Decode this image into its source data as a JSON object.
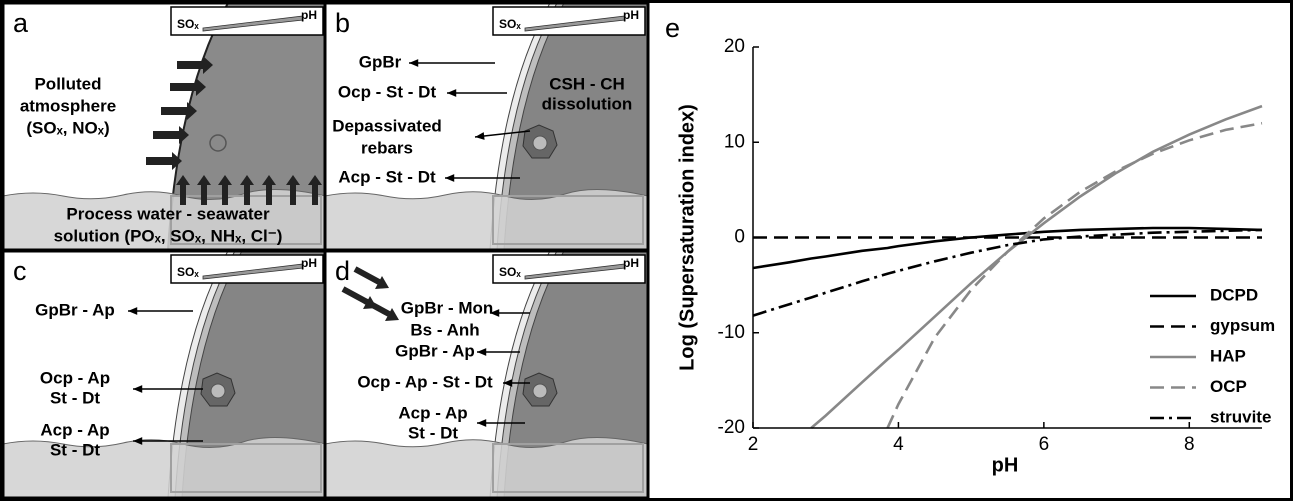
{
  "panels": [
    {
      "letter": "a",
      "gauge": {
        "left": "SOₓ",
        "right": "pH"
      },
      "labels": [
        "Polluted",
        "atmosphere",
        "(SOₓ, NOₓ)",
        "Process water - seawater",
        "solution (POₓ, SOₓ, NHₓ, Cl⁻)"
      ]
    },
    {
      "letter": "b",
      "gauge": {
        "left": "SOₓ",
        "right": "pH"
      },
      "labels": [
        "GpBr",
        "Ocp - St - Dt",
        "Depassivated",
        "rebars",
        "Acp - St - Dt",
        "CSH - CH",
        "dissolution"
      ]
    },
    {
      "letter": "c",
      "gauge": {
        "left": "SOₓ",
        "right": "pH"
      },
      "labels": [
        "GpBr - Ap",
        "Ocp - Ap",
        "St - Dt",
        "Acp - Ap",
        "St - Dt"
      ]
    },
    {
      "letter": "d",
      "gauge": {
        "left": "SOₓ",
        "right": "pH"
      },
      "labels": [
        "GpBr - Mon",
        "Bs - Anh",
        "GpBr - Ap",
        "Ocp - Ap - St - Dt",
        "Acp - Ap",
        "St - Dt"
      ]
    }
  ],
  "chart_data": {
    "type": "line",
    "panel_letter": "e",
    "x_label": "pH",
    "y_label": "Log (Supersaturation index)",
    "x": [
      2,
      2.5,
      2.8,
      3,
      3.5,
      3.85,
      4,
      4.5,
      5,
      5.5,
      6,
      6.5,
      7,
      7.5,
      8,
      8.5,
      9
    ],
    "xlim": [
      2,
      9
    ],
    "xticks": [
      2,
      4,
      6,
      8
    ],
    "ylim": [
      -20,
      20
    ],
    "yticks": [
      -20,
      -10,
      0,
      10,
      20
    ],
    "legend": "lower right",
    "series": [
      {
        "name": "DCPD",
        "color": "#000000",
        "dash": "solid",
        "values": [
          -3.2,
          -2.6,
          -2.2,
          -2.0,
          -1.4,
          -1.1,
          -0.9,
          -0.4,
          0,
          0.3,
          0.6,
          0.8,
          0.9,
          1.0,
          1.0,
          0.9,
          0.8
        ]
      },
      {
        "name": "gypsum",
        "color": "#000000",
        "dash": "dashed",
        "values": [
          0,
          0,
          0,
          0,
          0,
          0,
          0,
          0,
          0,
          0,
          0,
          0,
          0,
          0,
          0,
          0,
          0
        ]
      },
      {
        "name": "HAP",
        "color": "#888888",
        "dash": "solid",
        "values": [
          null,
          null,
          -20,
          -18.7,
          -15.2,
          -12.8,
          -11.8,
          -8.3,
          -4.8,
          -1.5,
          1.5,
          4.3,
          6.8,
          9.0,
          10.8,
          12.4,
          13.8
        ]
      },
      {
        "name": "OCP",
        "color": "#888888",
        "dash": "dashed",
        "values": [
          null,
          null,
          null,
          null,
          null,
          -20,
          -17.5,
          -10.5,
          -5.5,
          -1.5,
          2.0,
          4.8,
          7.0,
          8.8,
          10.2,
          11.3,
          12.0
        ]
      },
      {
        "name": "struvite",
        "color": "#000000",
        "dash": "dashdot",
        "values": [
          -8.2,
          -7.0,
          -6.3,
          -5.8,
          -4.6,
          -3.8,
          -3.5,
          -2.5,
          -1.6,
          -0.8,
          -0.2,
          0.1,
          0.3,
          0.5,
          0.6,
          0.7,
          0.8
        ]
      }
    ]
  }
}
